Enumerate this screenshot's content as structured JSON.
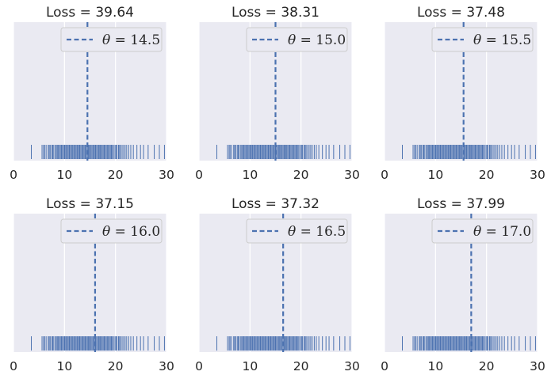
{
  "chart_data": [
    {
      "type": "rug",
      "title": "Loss = 39.64",
      "theta_symbol": "θ",
      "theta": 14.5,
      "legend_label": "= 14.5"
    },
    {
      "type": "rug",
      "title": "Loss = 38.31",
      "theta_symbol": "θ",
      "theta": 15.0,
      "legend_label": "= 15.0"
    },
    {
      "type": "rug",
      "title": "Loss = 37.48",
      "theta_symbol": "θ",
      "theta": 15.5,
      "legend_label": "= 15.5"
    },
    {
      "type": "rug",
      "title": "Loss = 37.15",
      "theta_symbol": "θ",
      "theta": 16.0,
      "legend_label": "= 16.0"
    },
    {
      "type": "rug",
      "title": "Loss = 37.32",
      "theta_symbol": "θ",
      "theta": 16.5,
      "legend_label": "= 16.5"
    },
    {
      "type": "rug",
      "title": "Loss = 37.99",
      "theta_symbol": "θ",
      "theta": 17.0,
      "legend_label": "= 17.0"
    }
  ],
  "shared": {
    "xlim": [
      0,
      30
    ],
    "xticks": [
      0,
      10,
      20,
      30
    ],
    "grid": true,
    "legend_position": "upper right",
    "colors": {
      "axes_bg": "#eaeaf2",
      "grid": "#ffffff",
      "series": "#4c72b0",
      "text": "#262626",
      "legend_bg": "#eaeaf2",
      "legend_edge": "#cccccc"
    },
    "rug_values": [
      3.5,
      5.6,
      5.9,
      6.1,
      6.4,
      6.8,
      7.0,
      7.2,
      7.5,
      7.7,
      7.9,
      8.2,
      8.4,
      8.6,
      8.8,
      9.0,
      9.2,
      9.4,
      9.6,
      9.8,
      10.0,
      10.1,
      10.3,
      10.5,
      10.7,
      10.9,
      11.0,
      11.2,
      11.4,
      11.6,
      11.8,
      12.0,
      12.1,
      12.3,
      12.5,
      12.7,
      12.9,
      13.0,
      13.2,
      13.4,
      13.6,
      13.8,
      14.0,
      14.1,
      14.3,
      14.5,
      14.7,
      14.9,
      15.0,
      15.2,
      15.4,
      15.6,
      15.8,
      16.0,
      16.1,
      16.3,
      16.5,
      16.7,
      16.9,
      17.0,
      17.2,
      17.4,
      17.6,
      17.8,
      18.0,
      18.2,
      18.4,
      18.6,
      18.8,
      19.0,
      19.2,
      19.4,
      19.6,
      19.9,
      20.1,
      20.3,
      20.6,
      20.8,
      21.0,
      21.3,
      21.6,
      21.9,
      22.2,
      22.6,
      23.0,
      23.5,
      24.2,
      24.9,
      25.5,
      26.4,
      27.6,
      28.6,
      29.6
    ]
  }
}
